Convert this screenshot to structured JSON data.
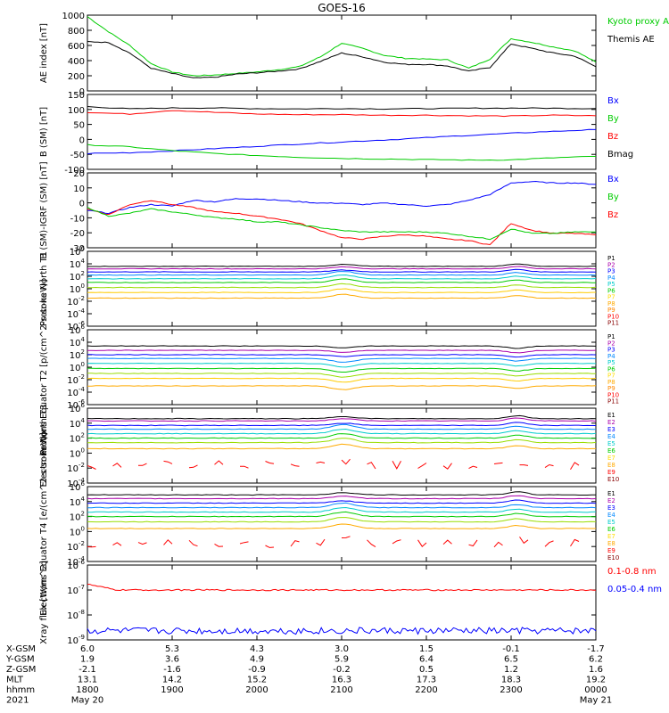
{
  "title": "GOES-16",
  "colors": {
    "black": "#000000",
    "red": "#ff0000",
    "green": "#00dd00",
    "blue": "#0000ff"
  },
  "chart_data": [
    {
      "type": "line",
      "ylabel": "AE index [nT]",
      "yticks": [
        "1000",
        "800",
        "600",
        "400",
        "200",
        "0"
      ],
      "ylim": [
        0,
        1000
      ],
      "legend": [
        {
          "name": "Kyoto proxy AE",
          "color": "#00cc00"
        },
        {
          "name": "Themis AE",
          "color": "#000000"
        }
      ],
      "series": [
        {
          "name": "Kyoto proxy AE",
          "color": "#00cc00",
          "x": [
            1800,
            1815,
            1830,
            1845,
            1900,
            1915,
            1930,
            1945,
            2000,
            2015,
            2030,
            2045,
            2100,
            2115,
            2130,
            2145,
            2200,
            2215,
            2230,
            2245,
            2300,
            2315,
            2330,
            2345,
            2400
          ],
          "values": [
            980,
            780,
            600,
            360,
            250,
            200,
            210,
            230,
            250,
            280,
            320,
            450,
            630,
            560,
            470,
            430,
            420,
            410,
            300,
            420,
            690,
            640,
            580,
            530,
            380
          ]
        },
        {
          "name": "Themis AE",
          "color": "#000000",
          "x": [
            1800,
            1815,
            1830,
            1845,
            1900,
            1915,
            1930,
            1945,
            2000,
            2015,
            2030,
            2045,
            2100,
            2115,
            2130,
            2145,
            2200,
            2215,
            2230,
            2245,
            2300,
            2315,
            2330,
            2345,
            2400
          ],
          "values": [
            650,
            640,
            500,
            300,
            230,
            170,
            180,
            220,
            240,
            260,
            290,
            390,
            500,
            450,
            380,
            350,
            350,
            330,
            260,
            310,
            620,
            560,
            500,
            460,
            320
          ]
        }
      ]
    },
    {
      "type": "line",
      "ylabel": "B (SM) [nT]",
      "yticks": [
        "150",
        "100",
        "50",
        "0",
        "-50",
        "-100"
      ],
      "ylim": [
        -110,
        150
      ],
      "legend": [
        {
          "name": "Bx",
          "color": "#0000ff"
        },
        {
          "name": "By",
          "color": "#00cc00"
        },
        {
          "name": "Bz",
          "color": "#ff0000"
        },
        {
          "name": "Bmag",
          "color": "#000000"
        }
      ],
      "series": [
        {
          "name": "Bmag",
          "color": "#000000",
          "x": [
            1800,
            1830,
            1900,
            1930,
            2000,
            2030,
            2100,
            2130,
            2200,
            2230,
            2300,
            2330,
            2400
          ],
          "values": [
            108,
            100,
            103,
            103,
            101,
            100,
            101,
            100,
            101,
            102,
            103,
            102,
            101
          ]
        },
        {
          "name": "Bz",
          "color": "#ff0000",
          "x": [
            1800,
            1830,
            1900,
            1930,
            2000,
            2030,
            2100,
            2130,
            2200,
            2230,
            2300,
            2330,
            2400
          ],
          "values": [
            88,
            82,
            95,
            88,
            82,
            80,
            80,
            78,
            78,
            76,
            75,
            78,
            76
          ]
        },
        {
          "name": "Bx",
          "color": "#0000ff",
          "x": [
            1800,
            1830,
            1900,
            1930,
            2000,
            2030,
            2100,
            2130,
            2200,
            2230,
            2300,
            2330,
            2400
          ],
          "values": [
            -55,
            -52,
            -46,
            -38,
            -30,
            -22,
            -15,
            -8,
            0,
            8,
            15,
            22,
            28
          ]
        },
        {
          "name": "By",
          "color": "#00cc00",
          "x": [
            1800,
            1830,
            1900,
            1930,
            2000,
            2030,
            2100,
            2130,
            2200,
            2230,
            2300,
            2330,
            2400
          ],
          "values": [
            -25,
            -32,
            -45,
            -55,
            -62,
            -68,
            -72,
            -74,
            -76,
            -78,
            -77,
            -70,
            -65
          ]
        }
      ]
    },
    {
      "type": "line",
      "ylabel": "B (SM)-IGRF (SM) [nT]",
      "yticks": [
        "20",
        "10",
        "0",
        "-10",
        "-20",
        "-30"
      ],
      "ylim": [
        -32,
        20
      ],
      "legend": [
        {
          "name": "Bx",
          "color": "#0000ff"
        },
        {
          "name": "By",
          "color": "#00cc00"
        },
        {
          "name": "Bz",
          "color": "#ff0000"
        }
      ],
      "series": [
        {
          "name": "Bx",
          "color": "#0000ff",
          "x": [
            1800,
            1815,
            1830,
            1845,
            1900,
            1915,
            1930,
            1945,
            2000,
            2015,
            2030,
            2045,
            2100,
            2115,
            2130,
            2145,
            2200,
            2215,
            2230,
            2245,
            2300,
            2315,
            2330,
            2345,
            2400
          ],
          "values": [
            -6,
            -8,
            -4,
            -2,
            -3,
            1,
            0,
            2,
            2,
            1,
            0,
            -1,
            -1,
            -2,
            -1,
            -2,
            -3,
            -2,
            1,
            5,
            13,
            14,
            13,
            13,
            12
          ]
        },
        {
          "name": "Bz",
          "color": "#ff0000",
          "x": [
            1800,
            1815,
            1830,
            1845,
            1900,
            1915,
            1930,
            1945,
            2000,
            2015,
            2030,
            2045,
            2100,
            2115,
            2130,
            2145,
            2200,
            2215,
            2230,
            2245,
            2300,
            2315,
            2330,
            2345,
            2400
          ],
          "values": [
            -5,
            -9,
            -2,
            1,
            -2,
            -4,
            -7,
            -8,
            -10,
            -12,
            -15,
            -20,
            -25,
            -26,
            -24,
            -23,
            -24,
            -26,
            -27,
            -30,
            -15,
            -20,
            -22,
            -22,
            -23
          ]
        },
        {
          "name": "By",
          "color": "#00cc00",
          "x": [
            1800,
            1815,
            1830,
            1845,
            1900,
            1915,
            1930,
            1945,
            2000,
            2015,
            2030,
            2045,
            2100,
            2115,
            2130,
            2145,
            2200,
            2215,
            2230,
            2245,
            2300,
            2315,
            2330,
            2345,
            2400
          ],
          "values": [
            -4,
            -10,
            -8,
            -5,
            -7,
            -9,
            -11,
            -12,
            -14,
            -14,
            -16,
            -18,
            -20,
            -21,
            -21,
            -21,
            -21,
            -22,
            -24,
            -26,
            -19,
            -22,
            -22,
            -21,
            -21
          ]
        }
      ]
    },
    {
      "type": "line",
      "scale": "log",
      "ylabel": "Protons North T1",
      "yticks": [
        "10^6",
        "10^4",
        "10^2",
        "10^0",
        "10^-2",
        "10^-4",
        "10^-6"
      ],
      "ylim": [
        -6,
        6
      ],
      "legend": [
        {
          "name": "P1",
          "color": "#000000"
        },
        {
          "name": "P2",
          "color": "#aa00aa"
        },
        {
          "name": "P3",
          "color": "#0000ff"
        },
        {
          "name": "P4",
          "color": "#0088ff"
        },
        {
          "name": "P5",
          "color": "#00cccc"
        },
        {
          "name": "P6",
          "color": "#00cc00"
        },
        {
          "name": "P7",
          "color": "#ffdd00"
        },
        {
          "name": "P8",
          "color": "#ffaa00"
        },
        {
          "name": "P9",
          "color": "#ff8800"
        },
        {
          "name": "P10",
          "color": "#ff0000"
        },
        {
          "name": "P11",
          "color": "#880000"
        }
      ],
      "levels": [
        3.6,
        3.2,
        2.7,
        2.2,
        1.6,
        1.0,
        0.2,
        -0.6,
        -1.5
      ],
      "colors_order": [
        "#000000",
        "#aa00aa",
        "#0000ff",
        "#0088ff",
        "#00cccc",
        "#00cc00",
        "#99dd00",
        "#ffcc00",
        "#ffaa00"
      ]
    },
    {
      "type": "line",
      "scale": "log",
      "ylabel": "Protons Equator T2 [p/(cm^2-s-sr-keV)]",
      "yticks": [
        "10^6",
        "10^4",
        "10^2",
        "10^0",
        "10^-2",
        "10^-4",
        "10^-6"
      ],
      "ylim": [
        -6,
        6
      ],
      "legend": [
        {
          "name": "P1",
          "color": "#000000"
        },
        {
          "name": "P2",
          "color": "#aa00aa"
        },
        {
          "name": "P3",
          "color": "#0000ff"
        },
        {
          "name": "P4",
          "color": "#0088ff"
        },
        {
          "name": "P5",
          "color": "#00cccc"
        },
        {
          "name": "P6",
          "color": "#00cc00"
        },
        {
          "name": "P7",
          "color": "#ffdd00"
        },
        {
          "name": "P8",
          "color": "#ffaa00"
        },
        {
          "name": "P9",
          "color": "#ff8800"
        },
        {
          "name": "P10",
          "color": "#ff0000"
        },
        {
          "name": "P11",
          "color": "#880000"
        }
      ],
      "levels": [
        3.4,
        2.7,
        2.0,
        1.4,
        0.6,
        -0.2,
        -1.0,
        -1.8,
        -3.0
      ],
      "colors_order": [
        "#000000",
        "#aa00aa",
        "#0000ff",
        "#0088ff",
        "#00cccc",
        "#00cc00",
        "#99dd00",
        "#ffcc00",
        "#ffaa00"
      ]
    },
    {
      "type": "line",
      "scale": "log",
      "ylabel": "Electrons North T3",
      "yticks": [
        "10^6",
        "10^4",
        "10^2",
        "10^0",
        "10^-2",
        "10^-4"
      ],
      "ylim": [
        -4,
        6
      ],
      "legend": [
        {
          "name": "E1",
          "color": "#000000"
        },
        {
          "name": "E2",
          "color": "#aa00aa"
        },
        {
          "name": "E3",
          "color": "#0000ff"
        },
        {
          "name": "E4",
          "color": "#0088ff"
        },
        {
          "name": "E5",
          "color": "#00cccc"
        },
        {
          "name": "E6",
          "color": "#00cc00"
        },
        {
          "name": "E7",
          "color": "#ffdd00"
        },
        {
          "name": "E8",
          "color": "#ffaa00"
        },
        {
          "name": "E9",
          "color": "#ff0000"
        },
        {
          "name": "E10",
          "color": "#880000"
        }
      ],
      "levels": [
        4.6,
        4.3,
        3.7,
        3.2,
        2.6,
        2.0,
        1.4,
        0.6,
        -1.6
      ],
      "colors_order": [
        "#000000",
        "#aa00aa",
        "#0000ff",
        "#0088ff",
        "#00cccc",
        "#00cc00",
        "#99dd00",
        "#ffaa00",
        "#ff0000"
      ]
    },
    {
      "type": "line",
      "scale": "log",
      "ylabel": "Electrons Equator T4 [e/(cm^2-s-sr-keV)]",
      "yticks": [
        "10^6",
        "10^4",
        "10^2",
        "10^0",
        "10^-2",
        "10^-4"
      ],
      "ylim": [
        -4,
        6
      ],
      "legend": [
        {
          "name": "E1",
          "color": "#000000"
        },
        {
          "name": "E2",
          "color": "#aa00aa"
        },
        {
          "name": "E3",
          "color": "#0000ff"
        },
        {
          "name": "E4",
          "color": "#0088ff"
        },
        {
          "name": "E5",
          "color": "#00cccc"
        },
        {
          "name": "E6",
          "color": "#00cc00"
        },
        {
          "name": "E7",
          "color": "#ffdd00"
        },
        {
          "name": "E8",
          "color": "#ffaa00"
        },
        {
          "name": "E9",
          "color": "#ff0000"
        },
        {
          "name": "E10",
          "color": "#880000"
        }
      ],
      "levels": [
        4.9,
        4.4,
        3.8,
        3.2,
        2.6,
        2.0,
        1.3,
        0.4,
        -1.6
      ],
      "colors_order": [
        "#000000",
        "#aa00aa",
        "#0000ff",
        "#0088ff",
        "#00cccc",
        "#00cc00",
        "#99dd00",
        "#ffaa00",
        "#ff0000"
      ]
    },
    {
      "type": "line",
      "scale": "log",
      "ylabel": "Xray flux [W/m^2]",
      "yticks": [
        "10^-6",
        "10^-7",
        "10^-8",
        "10^-9"
      ],
      "ylim": [
        -9.3,
        -6
      ],
      "legend": [
        {
          "name": "0.1-0.8 nm",
          "color": "#ff0000"
        },
        {
          "name": "0.05-0.4 nm",
          "color": "#0000ff"
        }
      ],
      "series": [
        {
          "name": "0.1-0.8 nm",
          "color": "#ff0000",
          "level": -7.1
        },
        {
          "name": "0.05-0.4 nm",
          "color": "#0000ff",
          "level": -8.9
        }
      ]
    }
  ],
  "x_axis": {
    "rows": [
      {
        "label": "X-GSM",
        "values": [
          "6.0",
          "5.3",
          "4.3",
          "3.0",
          "1.5",
          "-0.1",
          "-1.7"
        ]
      },
      {
        "label": "Y-GSM",
        "values": [
          "1.9",
          "3.6",
          "4.9",
          "5.9",
          "6.4",
          "6.5",
          "6.2"
        ]
      },
      {
        "label": "Z-GSM",
        "values": [
          "-2.1",
          "-1.6",
          "-0.9",
          "-0.2",
          "0.5",
          "1.2",
          "1.6"
        ]
      },
      {
        "label": "MLT",
        "values": [
          "13.1",
          "14.2",
          "15.2",
          "16.3",
          "17.3",
          "18.3",
          "19.2"
        ]
      },
      {
        "label": "hhmm",
        "values": [
          "1800",
          "1900",
          "2000",
          "2100",
          "2200",
          "2300",
          "0000"
        ]
      },
      {
        "label": "2021",
        "values": [
          "May 20",
          "",
          "",
          "",
          "",
          "",
          "May 21"
        ]
      }
    ]
  }
}
